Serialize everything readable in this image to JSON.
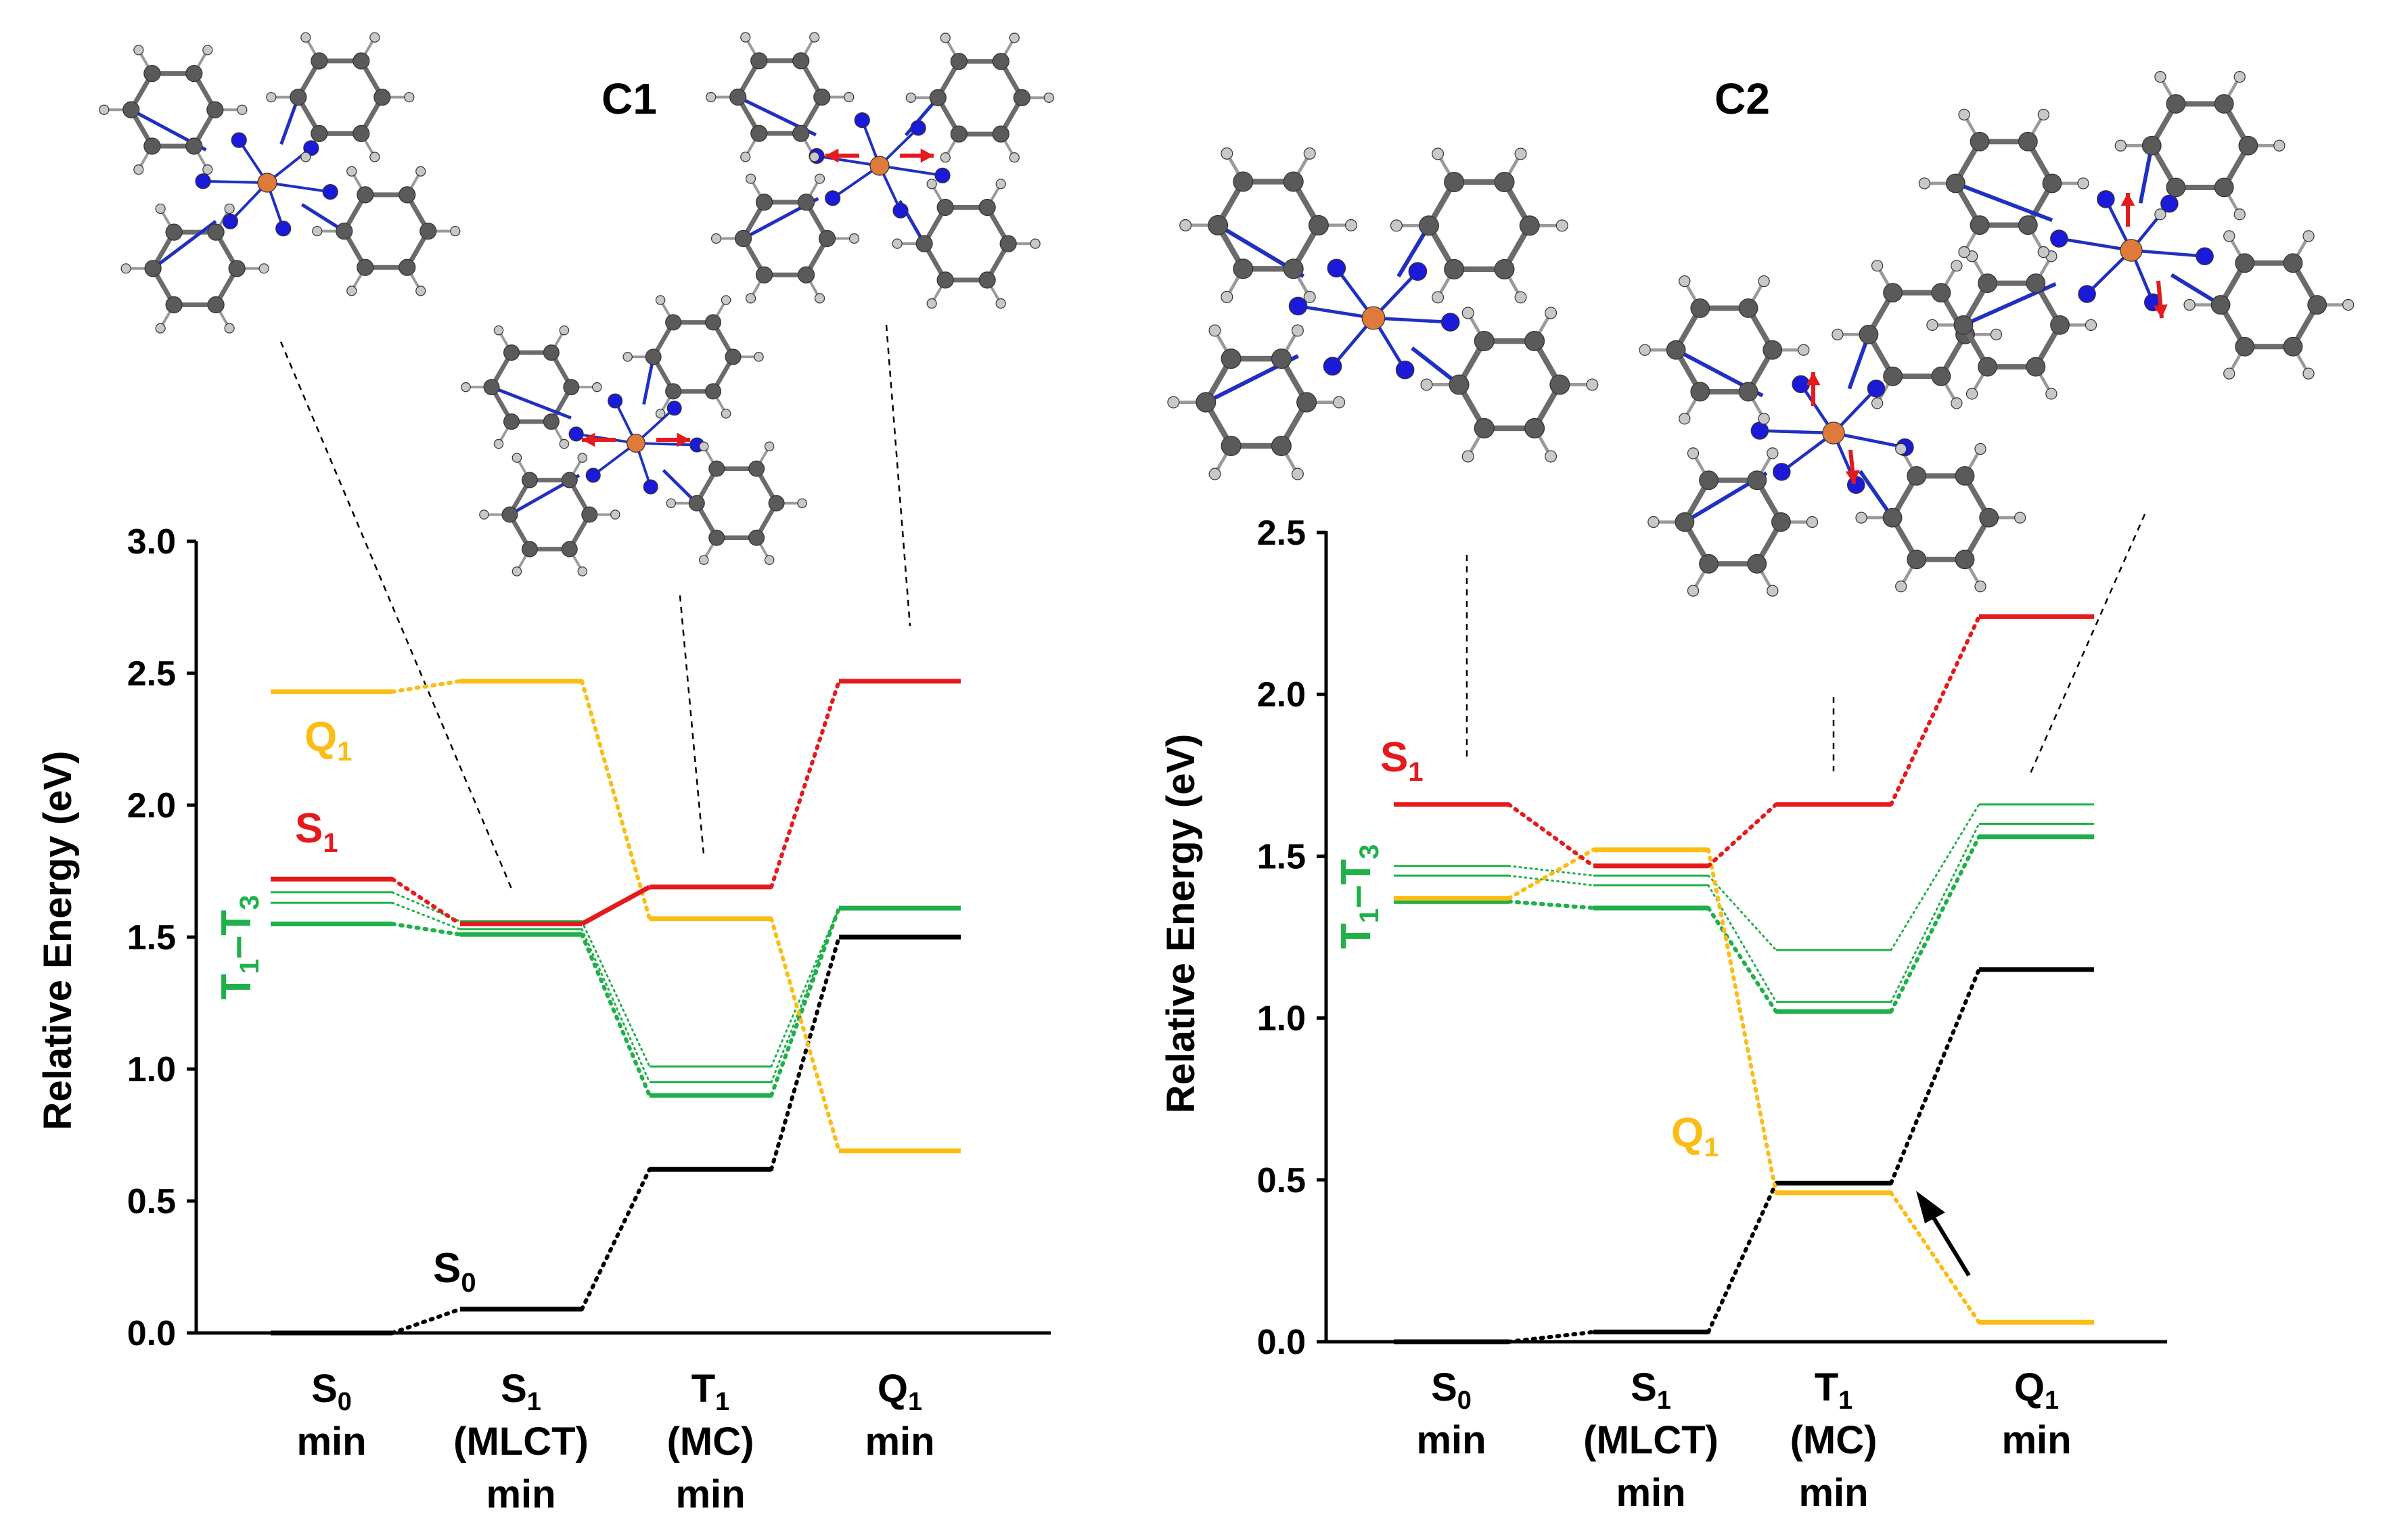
{
  "chart_data": [
    {
      "type": "energy-level-diagram",
      "title": "C1",
      "ylabel": "Relative Energy (eV)",
      "ylim": [
        0,
        3.0
      ],
      "yticks": [
        0.0,
        0.5,
        1.0,
        1.5,
        2.0,
        2.5,
        3.0
      ],
      "ytick_labels": [
        "0.0",
        "0.5",
        "1.0",
        "1.5",
        "2.0",
        "2.5",
        "3.0"
      ],
      "categories": [
        [
          "S0",
          "min"
        ],
        [
          "S1",
          "(MLCT)",
          "min"
        ],
        [
          "T1",
          "(MC)",
          "min"
        ],
        [
          "Q1",
          "min"
        ]
      ],
      "series": [
        {
          "name": "S0",
          "color": "#000000",
          "values": [
            0.0,
            0.09,
            0.62,
            1.5
          ],
          "width": 7
        },
        {
          "name": "S1",
          "color": "#e41a1c",
          "values": [
            1.72,
            1.55,
            1.69,
            2.47
          ],
          "width": 7,
          "solid_links": [
            1
          ]
        },
        {
          "name": "Q1",
          "color": "#fbbc14",
          "values": [
            2.43,
            2.47,
            1.57,
            0.69
          ],
          "width": 7
        },
        {
          "name": "T1",
          "color": "#1fb04a",
          "values": [
            1.55,
            1.51,
            0.9,
            1.61
          ],
          "width": 7
        },
        {
          "name": "T2",
          "color": "#1fb04a",
          "values": [
            1.63,
            1.53,
            0.95,
            1.61
          ],
          "width": 3
        },
        {
          "name": "T3",
          "color": "#1fb04a",
          "values": [
            1.67,
            1.56,
            1.01,
            1.61
          ],
          "width": 3
        }
      ],
      "labels": [
        {
          "text": "Q",
          "sub": "1",
          "series": "Q1"
        },
        {
          "text": "S",
          "sub": "1",
          "series": "S1"
        },
        {
          "text": "T",
          "sub": "1",
          "mid": "–T",
          "sub2": "3",
          "series": "T1"
        },
        {
          "text": "S",
          "sub": "0",
          "series": "S0"
        }
      ]
    },
    {
      "type": "energy-level-diagram",
      "title": "C2",
      "ylabel": "Relative Energy (eV)",
      "ylim": [
        0,
        2.5
      ],
      "yticks": [
        0.0,
        0.5,
        1.0,
        1.5,
        2.0,
        2.5
      ],
      "ytick_labels": [
        "0.0",
        "0.5",
        "1.0",
        "1.5",
        "2.0",
        "2.5"
      ],
      "categories": [
        [
          "S0",
          "min"
        ],
        [
          "S1",
          "(MLCT)",
          "min"
        ],
        [
          "T1",
          "(MC)",
          "min"
        ],
        [
          "Q1",
          "min"
        ]
      ],
      "series": [
        {
          "name": "S0",
          "color": "#000000",
          "values": [
            0.0,
            0.03,
            0.49,
            1.15
          ],
          "width": 7
        },
        {
          "name": "S1",
          "color": "#e41a1c",
          "values": [
            1.66,
            1.47,
            1.66,
            2.24
          ],
          "width": 7
        },
        {
          "name": "Q1",
          "color": "#fbbc14",
          "values": [
            1.37,
            1.52,
            0.46,
            0.06
          ],
          "width": 7
        },
        {
          "name": "T1",
          "color": "#1fb04a",
          "values": [
            1.36,
            1.34,
            1.02,
            1.56
          ],
          "width": 7
        },
        {
          "name": "T2",
          "color": "#1fb04a",
          "values": [
            1.44,
            1.41,
            1.05,
            1.6
          ],
          "width": 3
        },
        {
          "name": "T3",
          "color": "#1fb04a",
          "values": [
            1.47,
            1.44,
            1.21,
            1.66
          ],
          "width": 3
        }
      ],
      "labels": [
        {
          "text": "S",
          "sub": "1",
          "series": "S1"
        },
        {
          "text": "T",
          "sub": "1",
          "mid": "–T",
          "sub2": "3",
          "series": "T1"
        },
        {
          "text": "Q",
          "sub": "1",
          "series": "Q1"
        }
      ]
    }
  ]
}
